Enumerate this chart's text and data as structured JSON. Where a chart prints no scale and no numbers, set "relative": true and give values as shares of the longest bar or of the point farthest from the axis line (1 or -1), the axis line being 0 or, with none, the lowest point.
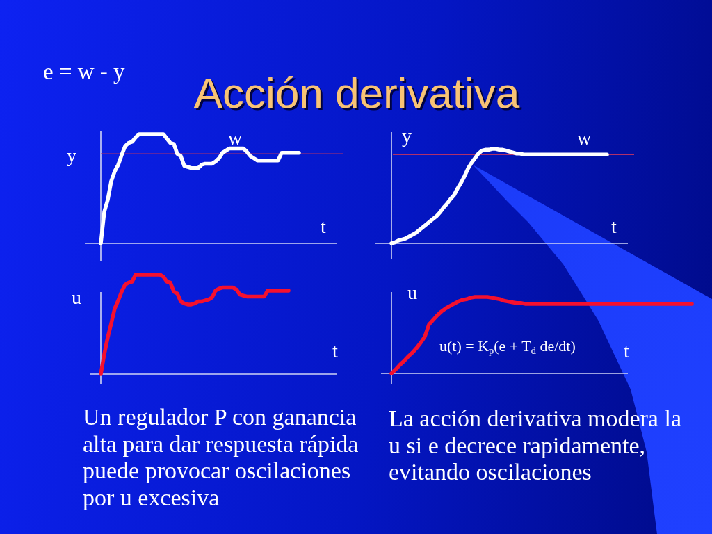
{
  "chart_data": [
    {
      "type": "line",
      "relative": true,
      "title": "Acción derivativa",
      "xlabel": "t",
      "ylabel": "y",
      "annotations": [
        "e = w - y"
      ],
      "categories": [
        null,
        null,
        null,
        null,
        null,
        null,
        null,
        null,
        null,
        null,
        null,
        null,
        null,
        null,
        null,
        null,
        null,
        null,
        null,
        null,
        null,
        null,
        null,
        null,
        null,
        null,
        null,
        null,
        null,
        null,
        null,
        null,
        null,
        null,
        null,
        null,
        null,
        null,
        null,
        null,
        null,
        null,
        null,
        null,
        null,
        null,
        null,
        null,
        null,
        null,
        null,
        null,
        null,
        null,
        null,
        null,
        null,
        null,
        null,
        null,
        null,
        null,
        null,
        null,
        null,
        null,
        null,
        null,
        null
      ],
      "series": [
        {
          "color": "#ffffff",
          "values": [
            0,
            0.29,
            0.4,
            0.57,
            0.66,
            0.72,
            0.81,
            0.89,
            0.92,
            0.93,
            0.97,
            1,
            1,
            1,
            1,
            1,
            1,
            1,
            1,
            0.96,
            0.92,
            0.91,
            0.82,
            0.8,
            0.71,
            0.7,
            0.69,
            0.69,
            0.69,
            0.72,
            0.73,
            0.73,
            0.73,
            0.75,
            0.78,
            0.83,
            0.85,
            0.87,
            0.87,
            0.87,
            0.87,
            0.87,
            0.84,
            0.8,
            0.78,
            0.76,
            0.76,
            0.76,
            0.76,
            0.76,
            0.76,
            0.76,
            0.83,
            0.83,
            0.83,
            0.83,
            0.83,
            0.83,
            null,
            null,
            null,
            null,
            null,
            null,
            null,
            null,
            null,
            null,
            null
          ]
        }
      ],
      "ref_lines": [
        {
          "axis": "y",
          "value": 0.82,
          "label": "w",
          "color": "#b0306a"
        }
      ]
    },
    {
      "type": "line",
      "relative": true,
      "xlabel": "t",
      "ylabel": "y",
      "categories": [
        null,
        null,
        null,
        null,
        null,
        null,
        null,
        null,
        null,
        null,
        null,
        null,
        null,
        null,
        null,
        null,
        null,
        null,
        null,
        null,
        null,
        null,
        null,
        null,
        null,
        null,
        null,
        null,
        null,
        null,
        null,
        null,
        null,
        null,
        null,
        null,
        null,
        null,
        null,
        null,
        null,
        null,
        null,
        null,
        null,
        null,
        null,
        null,
        null,
        null,
        null,
        null,
        null,
        null,
        null,
        null,
        null,
        null,
        null,
        null,
        null,
        null,
        null,
        null,
        null,
        null,
        null,
        null,
        null
      ],
      "series": [
        {
          "color": "#ffffff",
          "values": [
            0,
            0.01,
            0.03,
            0.04,
            0.05,
            0.07,
            0.09,
            0.11,
            0.14,
            0.17,
            0.2,
            0.23,
            0.26,
            0.29,
            0.33,
            0.38,
            0.42,
            0.47,
            0.51,
            0.58,
            0.64,
            0.71,
            0.79,
            0.85,
            0.9,
            0.95,
            0.98,
            0.99,
            0.99,
            1,
            1,
            0.99,
            0.99,
            0.98,
            0.97,
            0.96,
            0.95,
            0.95,
            0.94,
            0.94,
            0.94,
            0.94,
            0.94,
            0.94,
            0.94,
            0.94,
            0.94,
            0.94,
            0.94,
            0.94,
            0.94,
            0.94,
            0.94,
            0.94,
            0.94,
            0.94,
            0.94,
            0.94,
            0.94,
            0.94,
            0.94,
            0.94,
            0.94,
            null,
            null,
            null,
            null,
            null,
            null
          ]
        }
      ],
      "ref_lines": [
        {
          "axis": "y",
          "value": 0.94,
          "label": "w",
          "color": "#b0306a"
        }
      ]
    },
    {
      "type": "line",
      "relative": true,
      "xlabel": "t",
      "ylabel": "u",
      "annotations": [
        "Un regulador P con ganancia alta para dar respuesta rápida puede provocar oscilaciones por u excesiva"
      ],
      "categories": [
        null,
        null,
        null,
        null,
        null,
        null,
        null,
        null,
        null,
        null,
        null,
        null,
        null,
        null,
        null,
        null,
        null,
        null,
        null,
        null,
        null,
        null,
        null,
        null,
        null,
        null,
        null,
        null,
        null,
        null,
        null,
        null,
        null,
        null,
        null,
        null,
        null,
        null,
        null,
        null,
        null,
        null,
        null,
        null,
        null,
        null,
        null,
        null,
        null,
        null,
        null,
        null,
        null,
        null,
        null,
        null,
        null,
        null,
        null,
        null,
        null,
        null,
        null,
        null,
        null,
        null,
        null,
        null,
        null
      ],
      "series": [
        {
          "color": "#f5102e",
          "values": [
            0,
            0.2,
            0.37,
            0.51,
            0.66,
            0.74,
            0.83,
            0.9,
            0.92,
            0.93,
            1,
            1,
            1,
            1,
            1,
            1,
            1,
            1,
            0.98,
            0.93,
            0.92,
            0.83,
            0.81,
            0.73,
            0.71,
            0.7,
            0.7,
            0.71,
            0.73,
            0.73,
            0.74,
            0.75,
            0.77,
            0.84,
            0.86,
            0.87,
            0.87,
            0.87,
            0.87,
            0.85,
            0.8,
            0.79,
            0.78,
            0.78,
            0.78,
            0.78,
            0.78,
            0.78,
            0.84,
            0.84,
            0.84,
            0.84,
            0.84,
            0.84,
            0.84,
            null,
            null,
            null,
            null,
            null,
            null,
            null,
            null,
            null,
            null,
            null,
            null,
            null,
            null
          ]
        }
      ]
    },
    {
      "type": "line",
      "relative": true,
      "xlabel": "t",
      "ylabel": "u",
      "annotations": [
        "u(t) = K$_{p}$(e + T$_{d}$ de/dt)",
        "La acción derivativa modera la u si e decrece rapidamente, evitando oscilaciones"
      ],
      "categories": [
        null,
        null,
        null,
        null,
        null,
        null,
        null,
        null,
        null,
        null,
        null,
        null,
        null,
        null,
        null,
        null,
        null,
        null,
        null,
        null,
        null,
        null,
        null,
        null,
        null,
        null,
        null,
        null,
        null,
        null,
        null,
        null,
        null,
        null,
        null,
        null,
        null,
        null,
        null,
        null,
        null,
        null,
        null,
        null,
        null,
        null,
        null,
        null,
        null,
        null,
        null,
        null,
        null,
        null,
        null,
        null,
        null,
        null,
        null,
        null,
        null,
        null,
        null,
        null,
        null,
        null,
        null,
        null,
        null,
        null,
        null,
        null,
        null
      ],
      "series": [
        {
          "color": "#f5102e",
          "values": [
            0,
            0.05,
            0.11,
            0.16,
            0.22,
            0.27,
            0.33,
            0.4,
            0.48,
            0.64,
            0.7,
            0.76,
            0.81,
            0.85,
            0.88,
            0.91,
            0.94,
            0.96,
            0.97,
            0.99,
            1,
            1,
            1,
            1,
            0.99,
            0.98,
            0.97,
            0.95,
            0.94,
            0.93,
            0.92,
            0.92,
            0.91,
            0.91,
            0.91,
            0.91,
            0.91,
            0.91,
            0.91,
            0.91,
            0.91,
            0.91,
            0.91,
            0.91,
            0.91,
            0.91,
            0.91,
            0.91,
            0.91,
            0.91,
            0.91,
            0.91,
            0.91,
            0.91,
            0.91,
            0.91,
            0.91,
            0.91,
            0.91,
            0.91,
            0.91,
            0.91,
            0.91,
            0.91,
            0.91,
            0.91,
            0.91,
            0.91,
            0.91,
            0.91,
            0.91,
            0.91,
            0.91
          ]
        }
      ]
    }
  ]
}
